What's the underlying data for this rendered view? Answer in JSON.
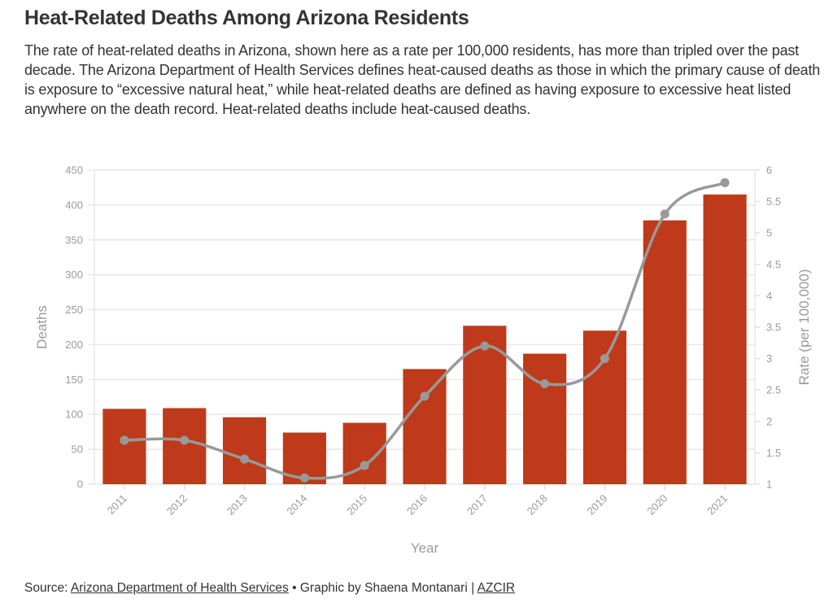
{
  "header": {
    "title": "Heat-Related Deaths Among Arizona Residents",
    "subtitle": "The rate of heat-related deaths in Arizona, shown here as a rate per 100,000 residents, has more than tripled over the past decade. The Arizona Department of Health Services defines heat-caused deaths as those in which the primary cause of death is exposure to “excessive natural heat,” while heat-related deaths are defined as having exposure to excessive heat listed anywhere on the death record. Heat-related deaths include heat-caused deaths."
  },
  "chart_data": {
    "type": "bar",
    "title": "Heat-Related Deaths Among Arizona Residents",
    "xlabel": "Year",
    "ylabel": "Deaths",
    "y2label": "Rate (per 100,000)",
    "categories": [
      "2011",
      "2012",
      "2013",
      "2014",
      "2015",
      "2016",
      "2017",
      "2018",
      "2019",
      "2020",
      "2021"
    ],
    "series": [
      {
        "name": "Deaths",
        "type": "bar",
        "axis": "left",
        "color": "#bf3a1a",
        "values": [
          108,
          109,
          96,
          74,
          88,
          165,
          227,
          187,
          220,
          378,
          415
        ]
      },
      {
        "name": "Rate (per 100,000)",
        "type": "line",
        "axis": "right",
        "color": "#999999",
        "values": [
          1.7,
          1.7,
          1.4,
          1.1,
          1.3,
          2.4,
          3.2,
          2.6,
          3.0,
          5.3,
          5.8
        ]
      }
    ],
    "ylim": [
      0,
      450
    ],
    "y2lim": [
      1,
      6
    ],
    "yticks": [
      "0",
      "50",
      "100",
      "150",
      "200",
      "250",
      "300",
      "350",
      "400",
      "450"
    ],
    "y2ticks": [
      "1",
      "1.5",
      "2",
      "2.5",
      "3",
      "3.5",
      "4",
      "4.5",
      "5",
      "5.5",
      "6"
    ],
    "grid": true,
    "legend": "none"
  },
  "footer": {
    "source_prefix": "Source: ",
    "source_link": "Arizona Department of Health Services",
    "separator": " • Graphic by Shaena Montanari | ",
    "org_link": "AZCIR"
  }
}
